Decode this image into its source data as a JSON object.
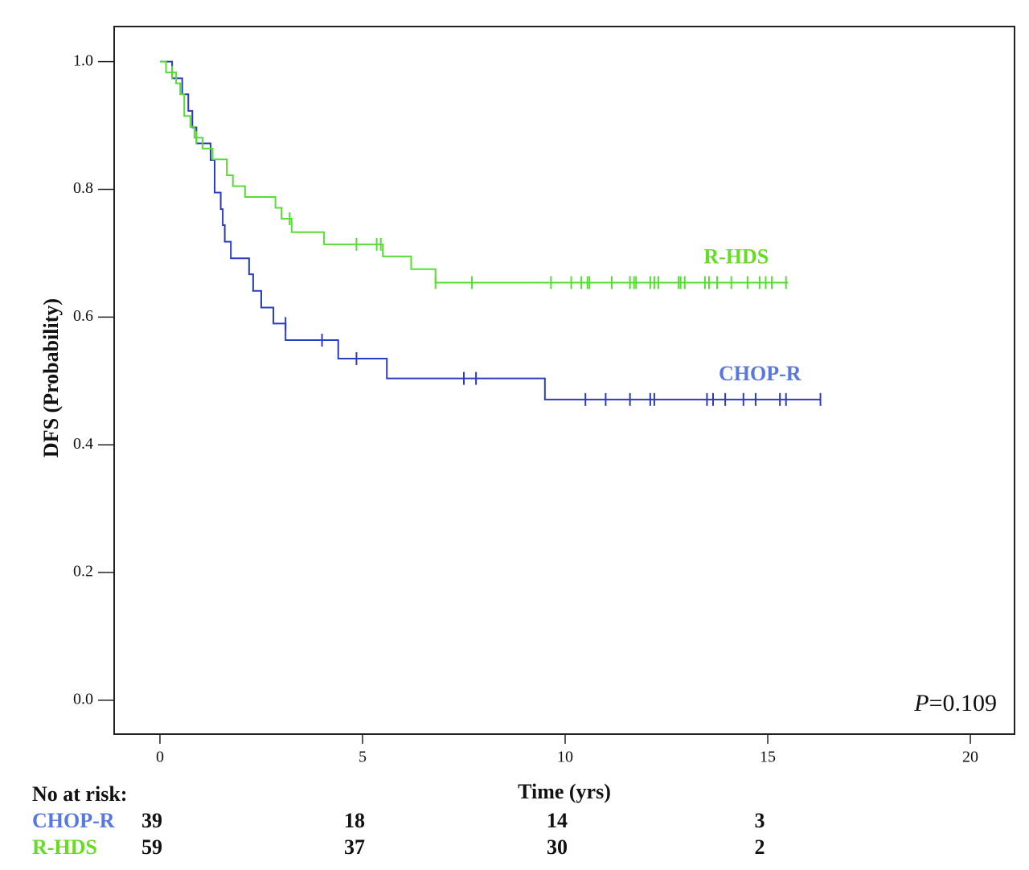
{
  "chart_data": {
    "type": "kaplan-meier",
    "y_label": "DFS (Probability)",
    "x_label": "Time (yrs)",
    "xlim": [
      -1.13,
      21.09
    ],
    "ylim": [
      -0.053,
      1.055
    ],
    "xticks": [
      0,
      5,
      10,
      15,
      20
    ],
    "yticks": [
      {
        "value": 0,
        "label": "0.0"
      },
      {
        "value": 0.2,
        "label": "0.2"
      },
      {
        "value": 0.4,
        "label": "0.4"
      },
      {
        "value": 0.6,
        "label": "0.6"
      },
      {
        "value": 0.8,
        "label": "0.8"
      },
      {
        "value": 1,
        "label": "1.0"
      }
    ],
    "annotation": {
      "symbol": "P",
      "text": "=0.109"
    },
    "series": [
      {
        "name": "CHOP-R",
        "color": "#2a3cbf",
        "label_color": "#5878e0",
        "x": [
          0,
          0.3,
          0.55,
          0.7,
          0.8,
          0.9,
          1.25,
          1.35,
          1.5,
          1.55,
          1.6,
          1.75,
          2.2,
          2.3,
          2.5,
          2.8,
          3.1,
          4.4,
          5.6,
          9.5,
          16.3
        ],
        "values": [
          1.0,
          0.974,
          0.949,
          0.923,
          0.897,
          0.872,
          0.846,
          0.795,
          0.769,
          0.744,
          0.718,
          0.692,
          0.667,
          0.641,
          0.615,
          0.59,
          0.564,
          0.535,
          0.504,
          0.471,
          0.471
        ],
        "censor": {
          "x": [
            3.1,
            4.0,
            4.85,
            7.5,
            7.8,
            10.5,
            11.0,
            11.6,
            12.1,
            12.2,
            13.5,
            13.65,
            13.95,
            14.4,
            14.7,
            15.3,
            15.45,
            16.3
          ],
          "values": [
            0.59,
            0.564,
            0.535,
            0.504,
            0.504,
            0.471,
            0.471,
            0.471,
            0.471,
            0.471,
            0.471,
            0.471,
            0.471,
            0.471,
            0.471,
            0.471,
            0.471,
            0.471
          ]
        }
      },
      {
        "name": "R-HDS",
        "color": "#55dd33",
        "label_color": "#66dd22",
        "x": [
          0,
          0.15,
          0.4,
          0.5,
          0.6,
          0.75,
          0.85,
          1.05,
          1.3,
          1.65,
          1.8,
          2.1,
          2.85,
          3.0,
          3.25,
          4.05,
          5.5,
          6.2,
          6.8,
          15.5
        ],
        "values": [
          1.0,
          0.983,
          0.966,
          0.949,
          0.915,
          0.898,
          0.881,
          0.864,
          0.847,
          0.822,
          0.805,
          0.788,
          0.771,
          0.754,
          0.733,
          0.714,
          0.695,
          0.675,
          0.654,
          0.654
        ],
        "censor": {
          "x": [
            0.3,
            0.9,
            3.2,
            4.85,
            5.35,
            5.45,
            6.8,
            7.7,
            9.65,
            10.15,
            10.4,
            10.55,
            10.6,
            11.15,
            11.6,
            11.7,
            11.75,
            12.1,
            12.2,
            12.3,
            12.8,
            12.85,
            12.95,
            13.45,
            13.55,
            13.75,
            14.1,
            14.5,
            14.8,
            14.95,
            15.1,
            15.45
          ],
          "values": [
            0.983,
            0.881,
            0.754,
            0.714,
            0.714,
            0.714,
            0.654,
            0.654,
            0.654,
            0.654,
            0.654,
            0.654,
            0.654,
            0.654,
            0.654,
            0.654,
            0.654,
            0.654,
            0.654,
            0.654,
            0.654,
            0.654,
            0.654,
            0.654,
            0.654,
            0.654,
            0.654,
            0.654,
            0.654,
            0.654,
            0.654,
            0.654
          ]
        }
      }
    ],
    "risk_table": {
      "title": "No at risk:",
      "rows": [
        {
          "label": "CHOP-R",
          "color": "#5878e0",
          "counts": [
            "39",
            "18",
            "14",
            "3"
          ]
        },
        {
          "label": "R-HDS",
          "color": "#66dd22",
          "counts": [
            "59",
            "37",
            "30",
            "2"
          ]
        }
      ]
    }
  }
}
